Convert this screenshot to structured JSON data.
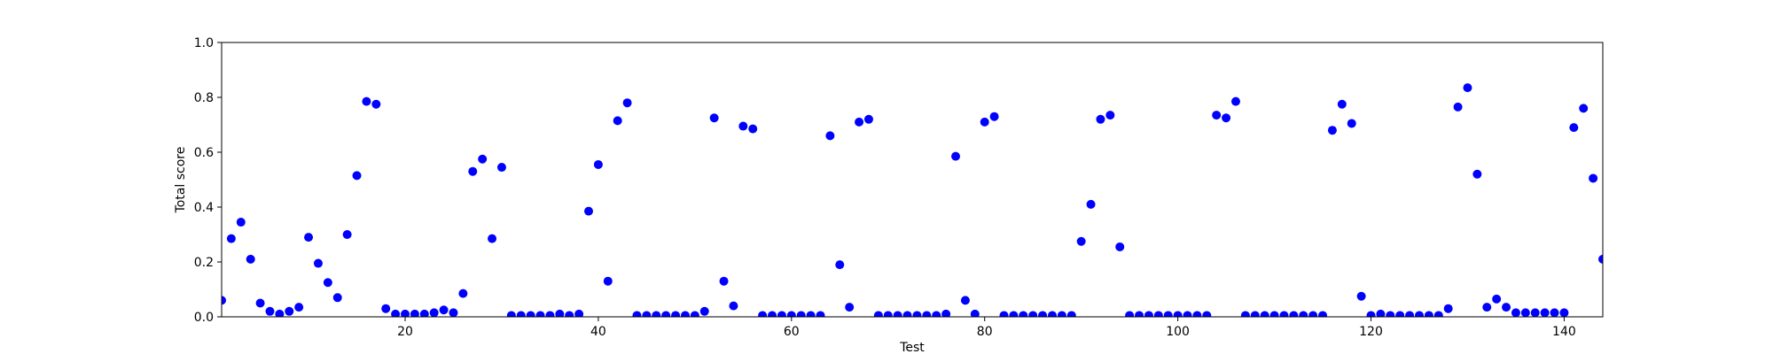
{
  "chart_data": {
    "type": "scatter",
    "title": "",
    "xlabel": "Test",
    "ylabel": "Total score",
    "xlim": [
      1,
      144
    ],
    "ylim": [
      0,
      1.0
    ],
    "xticks": [
      20,
      40,
      60,
      80,
      100,
      120,
      140
    ],
    "yticks": [
      0.0,
      0.2,
      0.4,
      0.6,
      0.8,
      1.0
    ],
    "xtick_labels": [
      "20",
      "40",
      "60",
      "80",
      "100",
      "120",
      "140"
    ],
    "ytick_labels": [
      "0.0",
      "0.2",
      "0.4",
      "0.6",
      "0.8",
      "1.0"
    ],
    "grid": false,
    "legend": "none",
    "marker_color": "#0000ff",
    "series": [
      {
        "x": [
          1,
          2,
          3,
          4,
          5,
          6,
          7,
          8,
          9,
          10,
          11,
          12,
          13,
          14,
          15,
          16,
          17,
          18,
          19,
          20,
          21,
          22,
          23,
          24,
          25,
          26,
          27,
          28,
          29,
          30,
          31,
          32,
          33,
          34,
          35,
          36,
          37,
          38,
          39,
          40,
          41,
          42,
          43,
          44,
          45,
          46,
          47,
          48,
          49,
          50,
          51,
          52,
          53,
          54,
          55,
          56,
          57,
          58,
          59,
          60,
          61,
          62,
          63,
          64,
          65,
          66,
          67,
          68,
          69,
          70,
          71,
          72,
          73,
          74,
          75,
          76,
          77,
          78,
          79,
          80,
          81,
          82,
          83,
          84,
          85,
          86,
          87,
          88,
          89,
          90,
          91,
          92,
          93,
          94,
          95,
          96,
          97,
          98,
          99,
          100,
          101,
          102,
          103,
          104,
          105,
          106,
          107,
          108,
          109,
          110,
          111,
          112,
          113,
          114,
          115,
          116,
          117,
          118,
          119,
          120,
          121,
          122,
          123,
          124,
          125,
          126,
          127,
          128,
          129,
          130,
          131,
          132,
          133,
          134,
          135,
          136,
          137,
          138,
          139,
          140,
          141,
          142,
          143,
          144
        ],
        "y": [
          0.06,
          0.285,
          0.345,
          0.21,
          0.05,
          0.02,
          0.01,
          0.02,
          0.035,
          0.29,
          0.195,
          0.125,
          0.07,
          0.3,
          0.515,
          0.785,
          0.775,
          0.03,
          0.01,
          0.01,
          0.01,
          0.01,
          0.015,
          0.025,
          0.015,
          0.085,
          0.53,
          0.575,
          0.285,
          0.545,
          0.005,
          0.005,
          0.005,
          0.005,
          0.005,
          0.01,
          0.005,
          0.01,
          0.385,
          0.555,
          0.13,
          0.715,
          0.78,
          0.005,
          0.005,
          0.005,
          0.005,
          0.005,
          0.005,
          0.005,
          0.02,
          0.725,
          0.13,
          0.04,
          0.695,
          0.685,
          0.005,
          0.005,
          0.005,
          0.005,
          0.005,
          0.005,
          0.005,
          0.66,
          0.19,
          0.035,
          0.71,
          0.72,
          0.005,
          0.005,
          0.005,
          0.005,
          0.005,
          0.005,
          0.005,
          0.01,
          0.585,
          0.06,
          0.01,
          0.71,
          0.73,
          0.005,
          0.005,
          0.005,
          0.005,
          0.005,
          0.005,
          0.005,
          0.005,
          0.275,
          0.41,
          0.72,
          0.735,
          0.255,
          0.005,
          0.005,
          0.005,
          0.005,
          0.005,
          0.005,
          0.005,
          0.005,
          0.005,
          0.735,
          0.725,
          0.785,
          0.005,
          0.005,
          0.005,
          0.005,
          0.005,
          0.005,
          0.005,
          0.005,
          0.005,
          0.68,
          0.775,
          0.705,
          0.075,
          0.005,
          0.01,
          0.005,
          0.005,
          0.005,
          0.005,
          0.005,
          0.005,
          0.03,
          0.765,
          0.835,
          0.52,
          0.035,
          0.065,
          0.035,
          0.015,
          0.015,
          0.015,
          0.015,
          0.015,
          0.015,
          0.69,
          0.76,
          0.505,
          0.21
        ]
      }
    ]
  }
}
